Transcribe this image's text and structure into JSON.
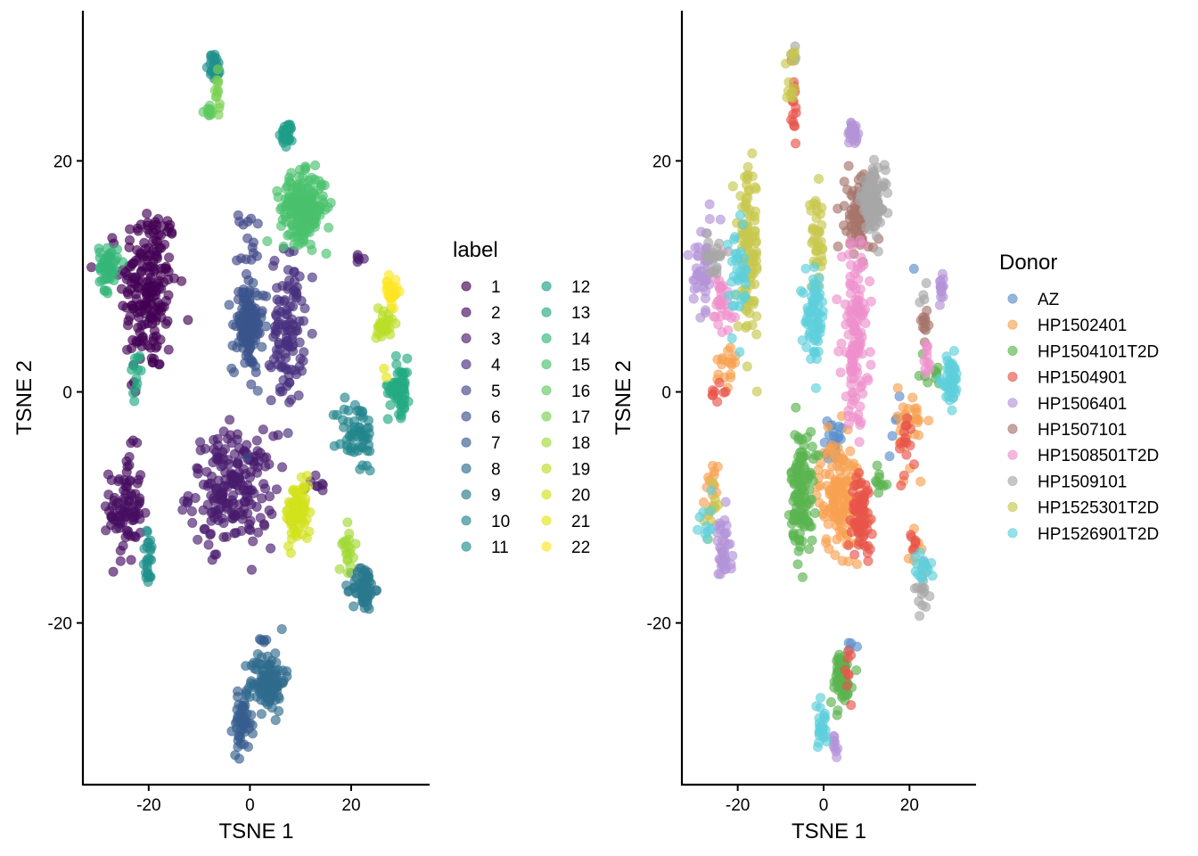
{
  "chart_data": [
    {
      "type": "scatter",
      "xlabel": "TSNE 1",
      "ylabel": "TSNE 2",
      "xlim": [
        -33,
        35.5
      ],
      "ylim": [
        -34,
        33
      ],
      "x_ticks": [
        -20,
        0,
        20
      ],
      "y_ticks": [
        -20,
        0,
        20
      ],
      "x_tick_labels": [
        "-20",
        "0",
        "20"
      ],
      "y_tick_labels": [
        "-20",
        "0",
        "20"
      ],
      "legend_title": "label",
      "legend_placement": "right",
      "grid": false,
      "point_alpha": 0.65,
      "series": [
        {
          "name": "1",
          "color": "#440154",
          "clusters": [
            {
              "x": -20,
              "y": 9,
              "sx": 2.8,
              "sy": 3.8,
              "n": 200
            },
            {
              "x": -23,
              "y": 0.5,
              "sx": 0.5,
              "sy": 0.6,
              "n": 3
            }
          ]
        },
        {
          "name": "2",
          "color": "#470E61",
          "clusters": [
            {
              "x": -24.5,
              "y": -10,
              "sx": 1.6,
              "sy": 2.4,
              "n": 90
            }
          ]
        },
        {
          "name": "3",
          "color": "#481B6D",
          "clusters": [
            {
              "x": -3.5,
              "y": -8.5,
              "sx": 4.2,
              "sy": 2.4,
              "n": 200
            },
            {
              "x": 22,
              "y": 11.3,
              "sx": 0.7,
              "sy": 0.4,
              "n": 5
            },
            {
              "x": 13,
              "y": -8,
              "sx": 1.5,
              "sy": 0.6,
              "n": 8
            }
          ]
        },
        {
          "name": "4",
          "color": "#46307E",
          "clusters": [
            {
              "x": 7.5,
              "y": 5.5,
              "sx": 1.6,
              "sy": 3.3,
              "n": 110
            }
          ]
        },
        {
          "name": "5",
          "color": "#404688",
          "clusters": [
            {
              "x": 0,
              "y": 9,
              "sx": 1.1,
              "sy": 3.8,
              "n": 40
            }
          ]
        },
        {
          "name": "6",
          "color": "#3A548C",
          "clusters": [
            {
              "x": -0.5,
              "y": 5.5,
              "sx": 1.5,
              "sy": 1.8,
              "n": 100
            }
          ]
        },
        {
          "name": "7",
          "color": "#365D8D",
          "clusters": [
            {
              "x": 2.5,
              "y": -21.5,
              "sx": 0.6,
              "sy": 0.5,
              "n": 5
            },
            {
              "x": -1.5,
              "y": -28.8,
              "sx": 0.9,
              "sy": 1.2,
              "n": 50
            }
          ]
        },
        {
          "name": "8",
          "color": "#2F6B8E",
          "clusters": [
            {
              "x": 3.5,
              "y": -25,
              "sx": 1.7,
              "sy": 1.3,
              "n": 110
            }
          ]
        },
        {
          "name": "9",
          "color": "#2A788E",
          "clusters": [
            {
              "x": 22.5,
              "y": -17,
              "sx": 1.1,
              "sy": 1.0,
              "n": 60
            }
          ]
        },
        {
          "name": "10",
          "color": "#24868E",
          "clusters": [
            {
              "x": 21,
              "y": -3.8,
              "sx": 1.9,
              "sy": 1.6,
              "n": 60
            }
          ]
        },
        {
          "name": "11",
          "color": "#21918C",
          "clusters": [
            {
              "x": -20,
              "y": -14.5,
              "sx": 0.6,
              "sy": 1.2,
              "n": 25
            },
            {
              "x": -7,
              "y": 28.2,
              "sx": 0.6,
              "sy": 0.6,
              "n": 30
            }
          ]
        },
        {
          "name": "12",
          "color": "#1F9E89",
          "clusters": [
            {
              "x": 7.5,
              "y": 22.3,
              "sx": 0.6,
              "sy": 0.5,
              "n": 30
            }
          ]
        },
        {
          "name": "13",
          "color": "#25AB82",
          "clusters": [
            {
              "x": -22.5,
              "y": 1.5,
              "sx": 0.6,
              "sy": 1.2,
              "n": 12
            },
            {
              "x": 29.5,
              "y": 0.5,
              "sx": 1.1,
              "sy": 1.2,
              "n": 60
            }
          ]
        },
        {
          "name": "14",
          "color": "#35B779",
          "clusters": [
            {
              "x": -28,
              "y": 10.8,
              "sx": 0.9,
              "sy": 1.0,
              "n": 55
            }
          ]
        },
        {
          "name": "15",
          "color": "#4AC16D",
          "clusters": [
            {
              "x": 10.5,
              "y": 16,
              "sx": 2.2,
              "sy": 1.4,
              "n": 220
            }
          ]
        },
        {
          "name": "16",
          "color": "#5FCA61",
          "clusters": [
            {
              "x": -8,
              "y": 24.2,
              "sx": 0.5,
              "sy": 0.4,
              "n": 12
            }
          ]
        },
        {
          "name": "17",
          "color": "#7AD151",
          "clusters": [
            {
              "x": -6.5,
              "y": 25.8,
              "sx": 0.3,
              "sy": 0.8,
              "n": 12
            }
          ]
        },
        {
          "name": "18",
          "color": "#A2DA37",
          "clusters": [
            {
              "x": 19.5,
              "y": -13.5,
              "sx": 0.6,
              "sy": 1.0,
              "n": 20
            }
          ]
        },
        {
          "name": "19",
          "color": "#BADE28",
          "clusters": [
            {
              "x": 26.5,
              "y": 6,
              "sx": 0.8,
              "sy": 0.9,
              "n": 30
            }
          ]
        },
        {
          "name": "20",
          "color": "#D2E21B",
          "clusters": [
            {
              "x": 9.5,
              "y": -10.5,
              "sx": 1.2,
              "sy": 1.3,
              "n": 80
            }
          ]
        },
        {
          "name": "21",
          "color": "#E5E419",
          "clusters": [
            {
              "x": 26.5,
              "y": 1.5,
              "sx": 0.4,
              "sy": 0.4,
              "n": 2
            }
          ]
        },
        {
          "name": "22",
          "color": "#FDE725",
          "clusters": [
            {
              "x": 28,
              "y": 8.7,
              "sx": 0.6,
              "sy": 0.6,
              "n": 30
            }
          ]
        }
      ]
    },
    {
      "type": "scatter",
      "xlabel": "TSNE 1",
      "ylabel": "TSNE 2",
      "xlim": [
        -33,
        35.5
      ],
      "ylim": [
        -34,
        33
      ],
      "x_ticks": [
        -20,
        0,
        20
      ],
      "y_ticks": [
        -20,
        0,
        20
      ],
      "x_tick_labels": [
        "-20",
        "0",
        "20"
      ],
      "y_tick_labels": [
        "-20",
        "0",
        "20"
      ],
      "legend_title": "Donor",
      "legend_placement": "right",
      "grid": false,
      "point_alpha": 0.65,
      "series": [
        {
          "name": "AZ",
          "color": "#5A8FCC",
          "clusters": [
            {
              "x": 2,
              "y": -4,
              "sx": 1.2,
              "sy": 0.9,
              "n": 22
            },
            {
              "x": 18,
              "y": -3,
              "sx": 1.5,
              "sy": 1.5,
              "n": 6
            },
            {
              "x": 6.5,
              "y": -21.7,
              "sx": 0.6,
              "sy": 0.5,
              "n": 4
            },
            {
              "x": 20.5,
              "y": 10.5,
              "sx": 0.3,
              "sy": 0.3,
              "n": 1
            }
          ]
        },
        {
          "name": "HP1502401",
          "color": "#F8A151",
          "clusters": [
            {
              "x": 4,
              "y": -9,
              "sx": 2.6,
              "sy": 2.4,
              "n": 160
            },
            {
              "x": -23,
              "y": 2,
              "sx": 1.4,
              "sy": 1.4,
              "n": 18
            },
            {
              "x": 20.5,
              "y": -3,
              "sx": 1.6,
              "sy": 1.8,
              "n": 30
            },
            {
              "x": -26,
              "y": -8,
              "sx": 1.0,
              "sy": 1.5,
              "n": 15
            },
            {
              "x": 21,
              "y": -14,
              "sx": 0.7,
              "sy": 1.2,
              "n": 8
            }
          ]
        },
        {
          "name": "HP1504101T2D",
          "color": "#5AB450",
          "clusters": [
            {
              "x": -5,
              "y": -8.5,
              "sx": 1.3,
              "sy": 2.6,
              "n": 120
            },
            {
              "x": 4,
              "y": -24.8,
              "sx": 1.3,
              "sy": 1.2,
              "n": 70
            },
            {
              "x": 13,
              "y": -7.8,
              "sx": 1.2,
              "sy": 0.6,
              "n": 10
            },
            {
              "x": 24.5,
              "y": 1.5,
              "sx": 1.6,
              "sy": 1.0,
              "n": 10
            }
          ]
        },
        {
          "name": "HP1504901",
          "color": "#E8554A",
          "clusters": [
            {
              "x": 9,
              "y": -10.5,
              "sx": 1.2,
              "sy": 1.6,
              "n": 70
            },
            {
              "x": -7,
              "y": 25.5,
              "sx": 0.5,
              "sy": 2.0,
              "n": 16
            },
            {
              "x": -24.5,
              "y": 0,
              "sx": 0.8,
              "sy": 0.6,
              "n": 8
            },
            {
              "x": 19,
              "y": -5,
              "sx": 0.8,
              "sy": 1.5,
              "n": 15
            },
            {
              "x": 21,
              "y": -13,
              "sx": 0.8,
              "sy": 1.0,
              "n": 6
            },
            {
              "x": 5.5,
              "y": -24.5,
              "sx": 0.8,
              "sy": 1.4,
              "n": 8
            }
          ]
        },
        {
          "name": "HP1506401",
          "color": "#B494D8",
          "clusters": [
            {
              "x": 7,
              "y": 22.5,
              "sx": 0.7,
              "sy": 0.6,
              "n": 25
            },
            {
              "x": -28,
              "y": 11,
              "sx": 1.1,
              "sy": 1.8,
              "n": 50
            },
            {
              "x": -23.5,
              "y": -14,
              "sx": 1.0,
              "sy": 1.6,
              "n": 40
            },
            {
              "x": 2.5,
              "y": -30.5,
              "sx": 0.5,
              "sy": 0.7,
              "n": 10
            },
            {
              "x": 27.5,
              "y": 8.8,
              "sx": 0.6,
              "sy": 0.7,
              "n": 15
            }
          ]
        },
        {
          "name": "HP1507101",
          "color": "#A6756B",
          "clusters": [
            {
              "x": 8.5,
              "y": 15.5,
              "sx": 1.7,
              "sy": 1.7,
              "n": 110
            },
            {
              "x": 23.5,
              "y": 6,
              "sx": 0.6,
              "sy": 0.7,
              "n": 12
            }
          ]
        },
        {
          "name": "HP1508501T2D",
          "color": "#EE90CC",
          "clusters": [
            {
              "x": 7.5,
              "y": 5,
              "sx": 1.6,
              "sy": 3.8,
              "n": 130
            },
            {
              "x": -24,
              "y": 7.5,
              "sx": 1.5,
              "sy": 1.8,
              "n": 30
            },
            {
              "x": 24,
              "y": 2.5,
              "sx": 0.6,
              "sy": 1.0,
              "n": 10
            }
          ]
        },
        {
          "name": "HP1509101",
          "color": "#A8A8A8",
          "clusters": [
            {
              "x": 11.5,
              "y": 16.5,
              "sx": 1.4,
              "sy": 1.4,
              "n": 110
            },
            {
              "x": -25.5,
              "y": 12,
              "sx": 1.4,
              "sy": 0.8,
              "n": 20
            },
            {
              "x": 23,
              "y": -17,
              "sx": 0.8,
              "sy": 0.9,
              "n": 18
            },
            {
              "x": -7,
              "y": 29,
              "sx": 0.5,
              "sy": 0.5,
              "n": 6
            },
            {
              "x": 23,
              "y": 8,
              "sx": 0.5,
              "sy": 0.5,
              "n": 4
            }
          ]
        },
        {
          "name": "HP1525301T2D",
          "color": "#C7C84F",
          "clusters": [
            {
              "x": -17.5,
              "y": 12,
              "sx": 1.2,
              "sy": 3.5,
              "n": 110
            },
            {
              "x": -1.5,
              "y": 12.5,
              "sx": 1.0,
              "sy": 2.0,
              "n": 40
            },
            {
              "x": -7.5,
              "y": 27,
              "sx": 0.5,
              "sy": 1.5,
              "n": 12
            },
            {
              "x": -26,
              "y": -10,
              "sx": 0.8,
              "sy": 1.2,
              "n": 10
            }
          ]
        },
        {
          "name": "HP1526901T2D",
          "color": "#5ECFDB",
          "clusters": [
            {
              "x": -20,
              "y": 10,
              "sx": 1.3,
              "sy": 2.5,
              "n": 35
            },
            {
              "x": -2,
              "y": 6.5,
              "sx": 1.1,
              "sy": 1.8,
              "n": 70
            },
            {
              "x": 29.5,
              "y": 1,
              "sx": 1.0,
              "sy": 1.0,
              "n": 50
            },
            {
              "x": -0.5,
              "y": -29,
              "sx": 0.9,
              "sy": 0.9,
              "n": 25
            },
            {
              "x": 23,
              "y": -15.5,
              "sx": 0.9,
              "sy": 0.8,
              "n": 15
            },
            {
              "x": -27,
              "y": -11,
              "sx": 0.7,
              "sy": 1.0,
              "n": 10
            }
          ]
        }
      ]
    }
  ]
}
